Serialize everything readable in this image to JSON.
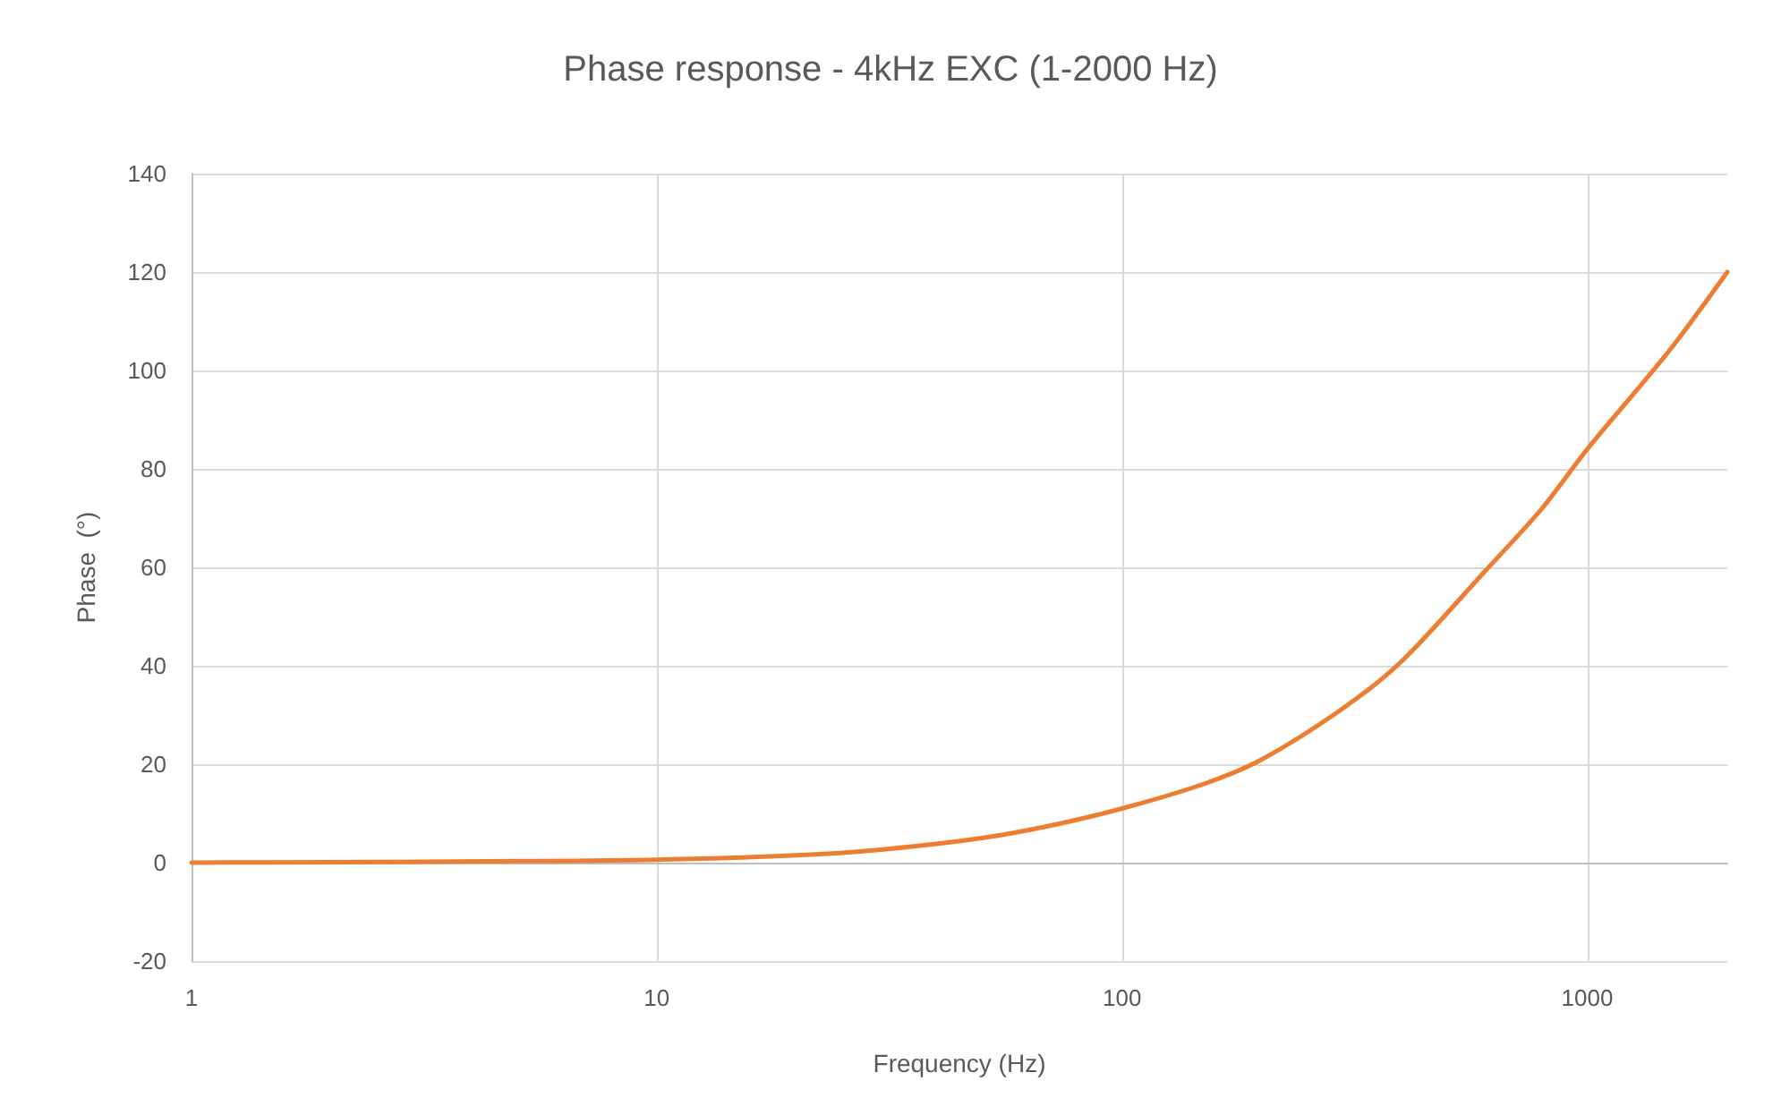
{
  "chart_data": {
    "type": "line",
    "title": "Phase response - 4kHz EXC (1-2000 Hz)",
    "xlabel": "Frequency (Hz)",
    "ylabel": "Phase  (°)",
    "log": "x",
    "x": [
      1,
      2,
      5,
      10,
      20,
      30,
      50,
      70,
      100,
      150,
      200,
      300,
      400,
      600,
      800,
      1000,
      1500,
      2000
    ],
    "series": [
      {
        "color": "#ed7d31",
        "values": [
          0,
          0.1,
          0.3,
          0.6,
          1.5,
          2.6,
          5,
          7.5,
          11,
          16,
          21,
          31.5,
          41,
          59,
          72,
          84,
          104,
          120
        ]
      }
    ],
    "xlim": [
      1,
      2000
    ],
    "xticks": [
      1,
      10,
      100,
      1000
    ],
    "ylim": [
      -20,
      140
    ],
    "yticks": [
      -20,
      0,
      20,
      40,
      60,
      80,
      100,
      120,
      140
    ],
    "grid": true,
    "marker": "none",
    "line_style": "solid"
  }
}
